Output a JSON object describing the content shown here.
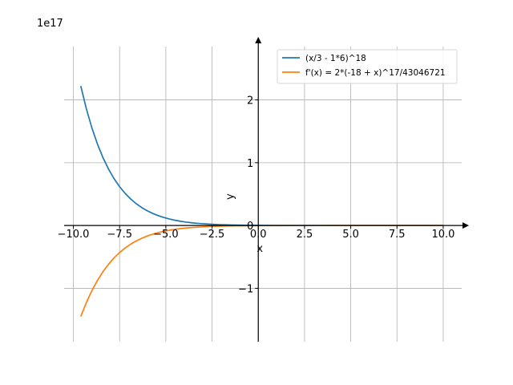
{
  "chart_data": {
    "type": "line",
    "title": "",
    "xlabel": "x",
    "ylabel": "y",
    "y_offset_text": "1e17",
    "xlim": [
      -10.5,
      11
    ],
    "ylim": [
      -1.85,
      2.85
    ],
    "x_ticks": [
      -10,
      -7.5,
      -5,
      -2.5,
      0,
      2.5,
      5,
      7.5,
      10
    ],
    "x_tick_labels": [
      "−10.0",
      "−7.5",
      "−5.0",
      "−2.5",
      "0.0",
      "2.5",
      "5.0",
      "7.5",
      "10.0"
    ],
    "y_ticks": [
      -1,
      0,
      1,
      2
    ],
    "y_tick_labels": [
      "−1",
      "0",
      "1",
      "2"
    ],
    "grid": true,
    "legend_position": "top-right",
    "series": [
      {
        "name": "(x/3 - 1*6)^18",
        "color": "#1f77b4",
        "x": [
          -9.6,
          -9.3,
          -9.0,
          -8.7,
          -8.4,
          -8.1,
          -7.8,
          -7.5,
          -7.2,
          -6.9,
          -6.6,
          -6.3,
          -6.0,
          -5.7,
          -5.4,
          -5.1,
          -4.8,
          -4.5,
          -4.2,
          -3.9,
          -3.6,
          -3.3,
          -3.0,
          -2.7,
          -2.4,
          -2.1,
          -1.8,
          -1.5,
          -1.2,
          -0.9,
          -0.6,
          -0.3,
          0.0,
          1.0,
          2.0,
          3.0,
          4.0,
          5.0,
          6.0,
          7.0,
          8.0,
          9.0,
          10.0
        ],
        "y": [
          2.222,
          1.861,
          1.556,
          1.298,
          1.081,
          0.899,
          0.746,
          0.618,
          0.511,
          0.422,
          0.347,
          0.285,
          0.234,
          0.191,
          0.156,
          0.127,
          0.103,
          0.0833,
          0.0673,
          0.0542,
          0.0436,
          0.0349,
          0.0279,
          0.0223,
          0.0177,
          0.014,
          0.0111,
          0.0087,
          0.0069,
          0.0054,
          0.0042,
          0.0033,
          0.00255,
          0.0013,
          0.0006,
          0.0003,
          0.0001,
          5e-05,
          2e-05,
          0.0,
          0.0,
          0.0,
          0.0
        ]
      },
      {
        "name": "f'(x) = 2*(-18 + x)^17/43046721",
        "color": "#ff7f0e",
        "x": [
          -9.6,
          -9.3,
          -9.0,
          -8.7,
          -8.4,
          -8.1,
          -7.8,
          -7.5,
          -7.2,
          -6.9,
          -6.6,
          -6.3,
          -6.0,
          -5.7,
          -5.4,
          -5.1,
          -4.8,
          -4.5,
          -4.2,
          -3.9,
          -3.6,
          -3.3,
          -3.0,
          -2.7,
          -2.4,
          -2.1,
          -1.8,
          -1.5,
          -1.2,
          -0.9,
          -0.6,
          -0.3,
          0.0,
          1.0,
          2.0,
          3.0,
          4.0,
          5.0,
          6.0,
          7.0,
          8.0,
          9.0,
          10.0
        ],
        "y": [
          -1.449,
          -1.229,
          -1.038,
          -0.875,
          -0.736,
          -0.617,
          -0.516,
          -0.43,
          -0.358,
          -0.297,
          -0.246,
          -0.203,
          -0.167,
          -0.137,
          -0.112,
          -0.0919,
          -0.0749,
          -0.0609,
          -0.0494,
          -0.04,
          -0.0323,
          -0.026,
          -0.0209,
          -0.0167,
          -0.0134,
          -0.0107,
          -0.0085,
          -0.0067,
          -0.0053,
          -0.0042,
          -0.0033,
          -0.0026,
          -0.002,
          -0.0011,
          -0.0006,
          -0.0003,
          -0.0001,
          -5e-05,
          -2e-05,
          0.0,
          0.0,
          0.0,
          0.0
        ]
      }
    ]
  }
}
